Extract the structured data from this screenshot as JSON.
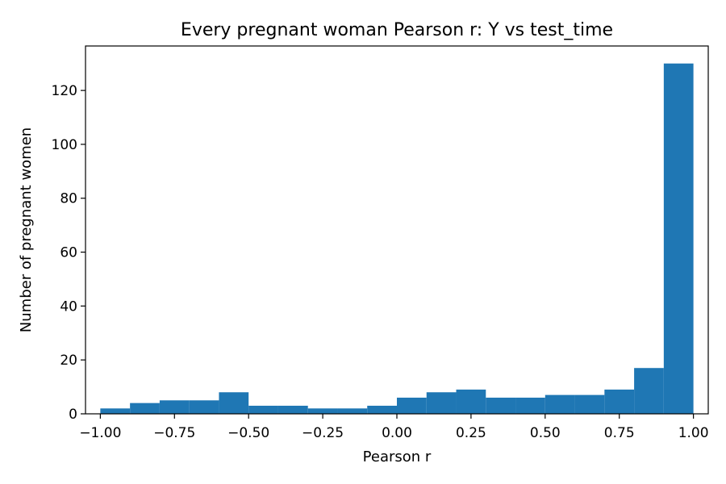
{
  "chart_data": {
    "type": "histogram",
    "title": "Every pregnant woman Pearson r: Y vs test_time",
    "xlabel": "Pearson r",
    "ylabel": "Number of pregnant women",
    "xlim": [
      -1.05,
      1.05
    ],
    "ylim": [
      0,
      136.5
    ],
    "x_ticks": [
      -1.0,
      -0.75,
      -0.5,
      -0.25,
      0.0,
      0.25,
      0.5,
      0.75,
      1.0
    ],
    "x_tick_labels": [
      "−1.00",
      "−0.75",
      "−0.50",
      "−0.25",
      "0.00",
      "0.25",
      "0.50",
      "0.75",
      "1.00"
    ],
    "y_ticks": [
      0,
      20,
      40,
      60,
      80,
      100,
      120
    ],
    "y_tick_labels": [
      "0",
      "20",
      "40",
      "60",
      "80",
      "100",
      "120"
    ],
    "bin_edges": [
      -1.0,
      -0.9,
      -0.8,
      -0.7,
      -0.6,
      -0.5,
      -0.4,
      -0.3,
      -0.2,
      -0.1,
      0.0,
      0.1,
      0.2,
      0.3,
      0.4,
      0.5,
      0.6,
      0.7,
      0.8,
      0.9,
      1.0
    ],
    "counts": [
      2,
      4,
      5,
      5,
      8,
      3,
      3,
      2,
      2,
      3,
      6,
      8,
      9,
      6,
      6,
      7,
      7,
      9,
      17,
      130
    ],
    "bar_color": "#1f77b4",
    "grid": false
  }
}
